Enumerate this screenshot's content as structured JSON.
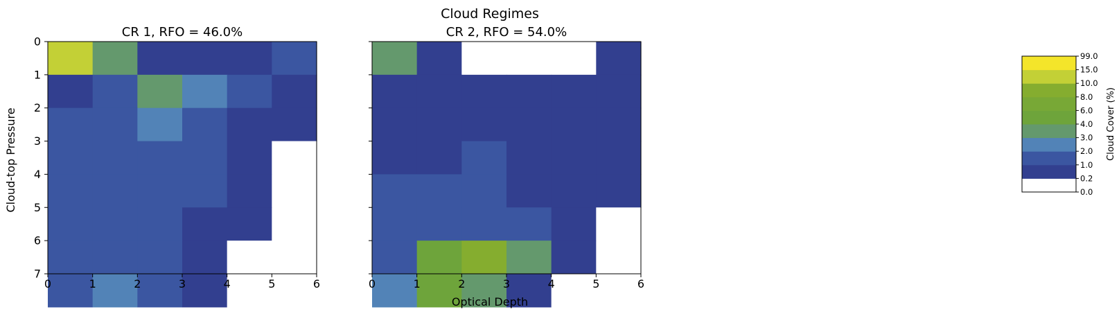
{
  "figure": {
    "title": "Cloud Regimes",
    "xlabel": "Optical Depth",
    "ylabel": "Cloud-top Pressure"
  },
  "colorbar": {
    "label": "Cloud Cover (%)",
    "boundaries": [
      "0.0",
      "0.2",
      "1.0",
      "2.0",
      "3.0",
      "4.0",
      "6.0",
      "8.0",
      "10.0",
      "15.0",
      "99.0"
    ],
    "colors": [
      "#ffffff",
      "#323f8f",
      "#3b56a1",
      "#5283b7",
      "#64996d",
      "#6ea43b",
      "#78a836",
      "#85ad2f",
      "#c3d036",
      "#f4e52a"
    ]
  },
  "chart_data": [
    {
      "type": "heatmap",
      "title": "CR 1, RFO = 46.0%",
      "xlabel": "Optical Depth",
      "ylabel": "Cloud-top Pressure",
      "x_ticks": [
        "0",
        "1",
        "2",
        "3",
        "4",
        "5",
        "6"
      ],
      "y_ticks": [
        "0",
        "1",
        "2",
        "3",
        "4",
        "5",
        "6",
        "7"
      ],
      "xlim": [
        0,
        6
      ],
      "ylim": [
        7,
        0
      ],
      "values_colorbar_bin": [
        [
          8,
          4,
          1,
          1,
          1,
          2
        ],
        [
          1,
          2,
          4,
          3,
          2,
          1
        ],
        [
          2,
          2,
          3,
          2,
          1,
          1
        ],
        [
          2,
          2,
          2,
          2,
          1,
          0
        ],
        [
          2,
          2,
          2,
          2,
          1,
          0
        ],
        [
          2,
          2,
          2,
          1,
          1,
          0
        ],
        [
          2,
          2,
          2,
          1,
          0,
          0
        ],
        [
          2,
          3,
          2,
          1,
          0,
          0
        ]
      ]
    },
    {
      "type": "heatmap",
      "title": "CR 2, RFO = 54.0%",
      "xlabel": "Optical Depth",
      "ylabel": "Cloud-top Pressure",
      "x_ticks": [
        "0",
        "1",
        "2",
        "3",
        "4",
        "5",
        "6"
      ],
      "y_ticks": [
        "0",
        "1",
        "2",
        "3",
        "4",
        "5",
        "6",
        "7"
      ],
      "xlim": [
        0,
        6
      ],
      "ylim": [
        7,
        0
      ],
      "values_colorbar_bin": [
        [
          4,
          1,
          0,
          0,
          0,
          1
        ],
        [
          1,
          1,
          1,
          1,
          1,
          1
        ],
        [
          1,
          1,
          1,
          1,
          1,
          1
        ],
        [
          1,
          1,
          2,
          1,
          1,
          1
        ],
        [
          2,
          2,
          2,
          1,
          1,
          1
        ],
        [
          2,
          2,
          2,
          2,
          1,
          0
        ],
        [
          2,
          5,
          7,
          4,
          1,
          0
        ],
        [
          3,
          5,
          4,
          1,
          0,
          0
        ]
      ]
    }
  ]
}
